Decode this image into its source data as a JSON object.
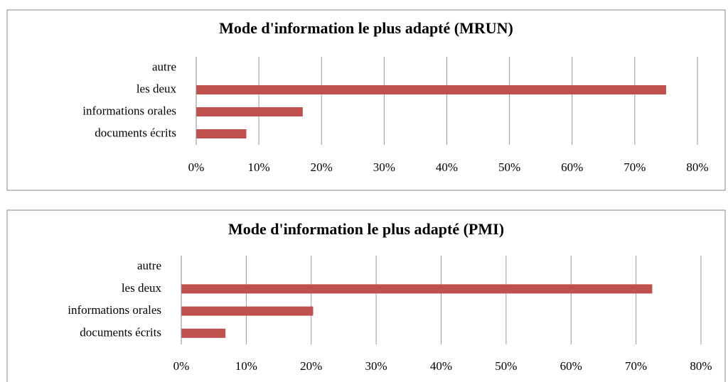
{
  "chart_data": [
    {
      "type": "bar",
      "orientation": "horizontal",
      "title": "Mode d'information le plus adapté (MRUN)",
      "categories": [
        "autre",
        "les deux",
        "informations orales",
        "documents écrits"
      ],
      "values": [
        0,
        75,
        17,
        8
      ],
      "color": "#c0504d",
      "xlim": [
        0,
        80
      ],
      "xticks": [
        {
          "value": 0,
          "label": "0%"
        },
        {
          "value": 10,
          "label": "10%"
        },
        {
          "value": 20,
          "label": "20%"
        },
        {
          "value": 30,
          "label": "30%"
        },
        {
          "value": 40,
          "label": "40%"
        },
        {
          "value": 50,
          "label": "50%"
        },
        {
          "value": 60,
          "label": "60%"
        },
        {
          "value": 70,
          "label": "70%"
        },
        {
          "value": 80,
          "label": "80%"
        }
      ],
      "grid": true
    },
    {
      "type": "bar",
      "orientation": "horizontal",
      "title": "Mode d'information le plus adapté (PMI)",
      "categories": [
        "autre",
        "les deux",
        "informations orales",
        "documents écrits"
      ],
      "values": [
        0,
        72.5,
        20.3,
        6.8
      ],
      "color": "#c0504d",
      "xlim": [
        0,
        80
      ],
      "xticks": [
        {
          "value": 0,
          "label": "0%"
        },
        {
          "value": 10,
          "label": "10%"
        },
        {
          "value": 20,
          "label": "20%"
        },
        {
          "value": 30,
          "label": "30%"
        },
        {
          "value": 40,
          "label": "40%"
        },
        {
          "value": 50,
          "label": "50%"
        },
        {
          "value": 60,
          "label": "60%"
        },
        {
          "value": 70,
          "label": "70%"
        },
        {
          "value": 80,
          "label": "80%"
        }
      ],
      "grid": true
    }
  ]
}
